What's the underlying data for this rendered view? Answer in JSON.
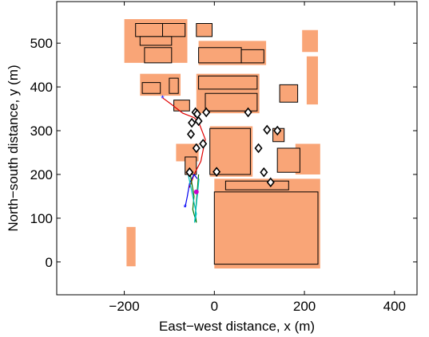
{
  "chart_data": {
    "type": "scatter",
    "title": "",
    "xlabel": "East−west distance, x (m)",
    "ylabel": "North−south distance, y (m)",
    "xlim": [
      -350,
      450
    ],
    "ylim": [
      -75,
      595
    ],
    "xticks": [
      -200,
      0,
      200,
      400
    ],
    "xtick_labels": [
      "−200",
      "0",
      "200",
      "400"
    ],
    "yticks": [
      0,
      100,
      200,
      300,
      400,
      500
    ],
    "ytick_labels": [
      "0",
      "100",
      "200",
      "300",
      "400",
      "500"
    ],
    "grid": false,
    "legend": "none",
    "colors": {
      "building_fill": "#f9a577",
      "building_outline": "#000000",
      "marker": "#000000",
      "start_marker": "#0000ff",
      "end_marker": "#cc00cc",
      "track_red": "#e00000",
      "track_blue": "#0000ee",
      "track_green": "#007700",
      "track_cyan": "#00c0c0"
    },
    "diamond_markers": {
      "x": [
        -42,
        -38,
        -35,
        -50,
        -18,
        -52,
        -40,
        75,
        117,
        140,
        98,
        110,
        125,
        5,
        -25,
        -55
      ],
      "y": [
        342,
        338,
        322,
        318,
        342,
        292,
        260,
        342,
        302,
        300,
        260,
        205,
        182,
        206,
        270,
        205
      ]
    },
    "start_points": {
      "x": [
        -115,
        -65
      ],
      "y": [
        375,
        125
      ]
    },
    "end_point": {
      "x": -40,
      "y": 160
    },
    "tracks": [
      {
        "color": "track_red",
        "x": [
          -115,
          -95,
          -70,
          -45,
          -35,
          -20,
          -30,
          -45,
          -55
        ],
        "y": [
          375,
          360,
          340,
          330,
          320,
          280,
          230,
          200,
          170
        ]
      },
      {
        "color": "track_blue",
        "x": [
          -65,
          -60,
          -55,
          -45,
          -38
        ],
        "y": [
          125,
          150,
          180,
          200,
          190
        ]
      },
      {
        "color": "track_green",
        "x": [
          -55,
          -50,
          -45,
          -48,
          -40,
          -42,
          -35
        ],
        "y": [
          210,
          180,
          150,
          120,
          90,
          110,
          200
        ]
      },
      {
        "color": "track_cyan",
        "x": [
          -58,
          -52,
          -46,
          -40,
          -44,
          -38,
          -34
        ],
        "y": [
          200,
          170,
          140,
          110,
          90,
          150,
          190
        ]
      }
    ],
    "buildings": [
      {
        "x": [
          -175,
          -115,
          -115,
          -175
        ],
        "y": [
          545,
          545,
          515,
          515
        ],
        "outlined": true
      },
      {
        "x": [
          -115,
          -65,
          -65,
          -115
        ],
        "y": [
          545,
          545,
          515,
          515
        ],
        "outlined": true
      },
      {
        "x": [
          -165,
          -95,
          -95,
          -165
        ],
        "y": [
          515,
          515,
          495,
          495
        ],
        "outlined": true
      },
      {
        "x": [
          -155,
          -95,
          -95,
          -155
        ],
        "y": [
          490,
          490,
          455,
          455
        ],
        "outlined": true
      },
      {
        "x": [
          -40,
          -5,
          -5,
          -40
        ],
        "y": [
          545,
          545,
          515,
          515
        ],
        "outlined": true
      },
      {
        "x": [
          -35,
          60,
          60,
          -35
        ],
        "y": [
          490,
          490,
          455,
          455
        ],
        "outlined": true
      },
      {
        "x": [
          60,
          110,
          110,
          60
        ],
        "y": [
          485,
          485,
          455,
          455
        ],
        "outlined": true
      },
      {
        "x": [
          -160,
          -120,
          -120,
          -160
        ],
        "y": [
          410,
          410,
          385,
          385
        ],
        "outlined": true
      },
      {
        "x": [
          -100,
          -80,
          -80,
          -100
        ],
        "y": [
          420,
          420,
          385,
          385
        ],
        "outlined": true
      },
      {
        "x": [
          -35,
          95,
          95,
          -35
        ],
        "y": [
          425,
          425,
          395,
          395
        ],
        "outlined": true
      },
      {
        "x": [
          -20,
          95,
          95,
          -20
        ],
        "y": [
          385,
          385,
          345,
          345
        ],
        "outlined": true
      },
      {
        "x": [
          -90,
          -55,
          -55,
          -90
        ],
        "y": [
          370,
          370,
          345,
          345
        ],
        "outlined": true
      },
      {
        "x": [
          -10,
          80,
          80,
          -10
        ],
        "y": [
          305,
          305,
          200,
          200
        ],
        "outlined": true
      },
      {
        "x": [
          130,
          155,
          155,
          130
        ],
        "y": [
          305,
          305,
          275,
          275
        ],
        "outlined": true
      },
      {
        "x": [
          145,
          185,
          185,
          145
        ],
        "y": [
          405,
          405,
          365,
          365
        ],
        "outlined": true
      },
      {
        "x": [
          140,
          190,
          190,
          140
        ],
        "y": [
          260,
          260,
          205,
          205
        ],
        "outlined": true
      },
      {
        "x": [
          -65,
          -40,
          -40,
          -65
        ],
        "y": [
          240,
          240,
          200,
          200
        ],
        "outlined": true
      },
      {
        "x": [
          25,
          165,
          165,
          25
        ],
        "y": [
          185,
          185,
          165,
          165
        ],
        "outlined": true
      },
      {
        "x": [
          0,
          230,
          230,
          0
        ],
        "y": [
          160,
          160,
          -5,
          -5
        ],
        "outlined": true
      },
      {
        "x": [
          195,
          230,
          230,
          195
        ],
        "y": [
          480,
          480,
          530,
          530
        ],
        "outlined": false
      },
      {
        "x": [
          205,
          230,
          230,
          205
        ],
        "y": [
          470,
          470,
          360,
          360
        ],
        "outlined": false
      },
      {
        "x": [
          180,
          235,
          235,
          180
        ],
        "y": [
          200,
          200,
          270,
          270
        ],
        "outlined": false
      },
      {
        "x": [
          -195,
          -175,
          -175,
          -195
        ],
        "y": [
          -10,
          -10,
          80,
          80
        ],
        "outlined": false
      },
      {
        "x": [
          -200,
          -60,
          -60,
          -200
        ],
        "y": [
          555,
          555,
          455,
          455
        ],
        "outlined": false
      },
      {
        "x": [
          -35,
          115,
          115,
          -35
        ],
        "y": [
          505,
          505,
          450,
          450
        ],
        "outlined": false
      },
      {
        "x": [
          -165,
          -75,
          -75,
          -165
        ],
        "y": [
          430,
          430,
          380,
          380
        ],
        "outlined": false
      },
      {
        "x": [
          -40,
          100,
          100,
          -40
        ],
        "y": [
          430,
          430,
          340,
          340
        ],
        "outlined": false
      },
      {
        "x": [
          -85,
          -35,
          -35,
          -85
        ],
        "y": [
          270,
          270,
          230,
          230
        ],
        "outlined": false
      },
      {
        "x": [
          -10,
          85,
          85,
          -10
        ],
        "y": [
          310,
          310,
          195,
          195
        ],
        "outlined": false
      },
      {
        "x": [
          0,
          235,
          235,
          0
        ],
        "y": [
          190,
          190,
          -15,
          -15
        ],
        "outlined": false
      }
    ]
  }
}
